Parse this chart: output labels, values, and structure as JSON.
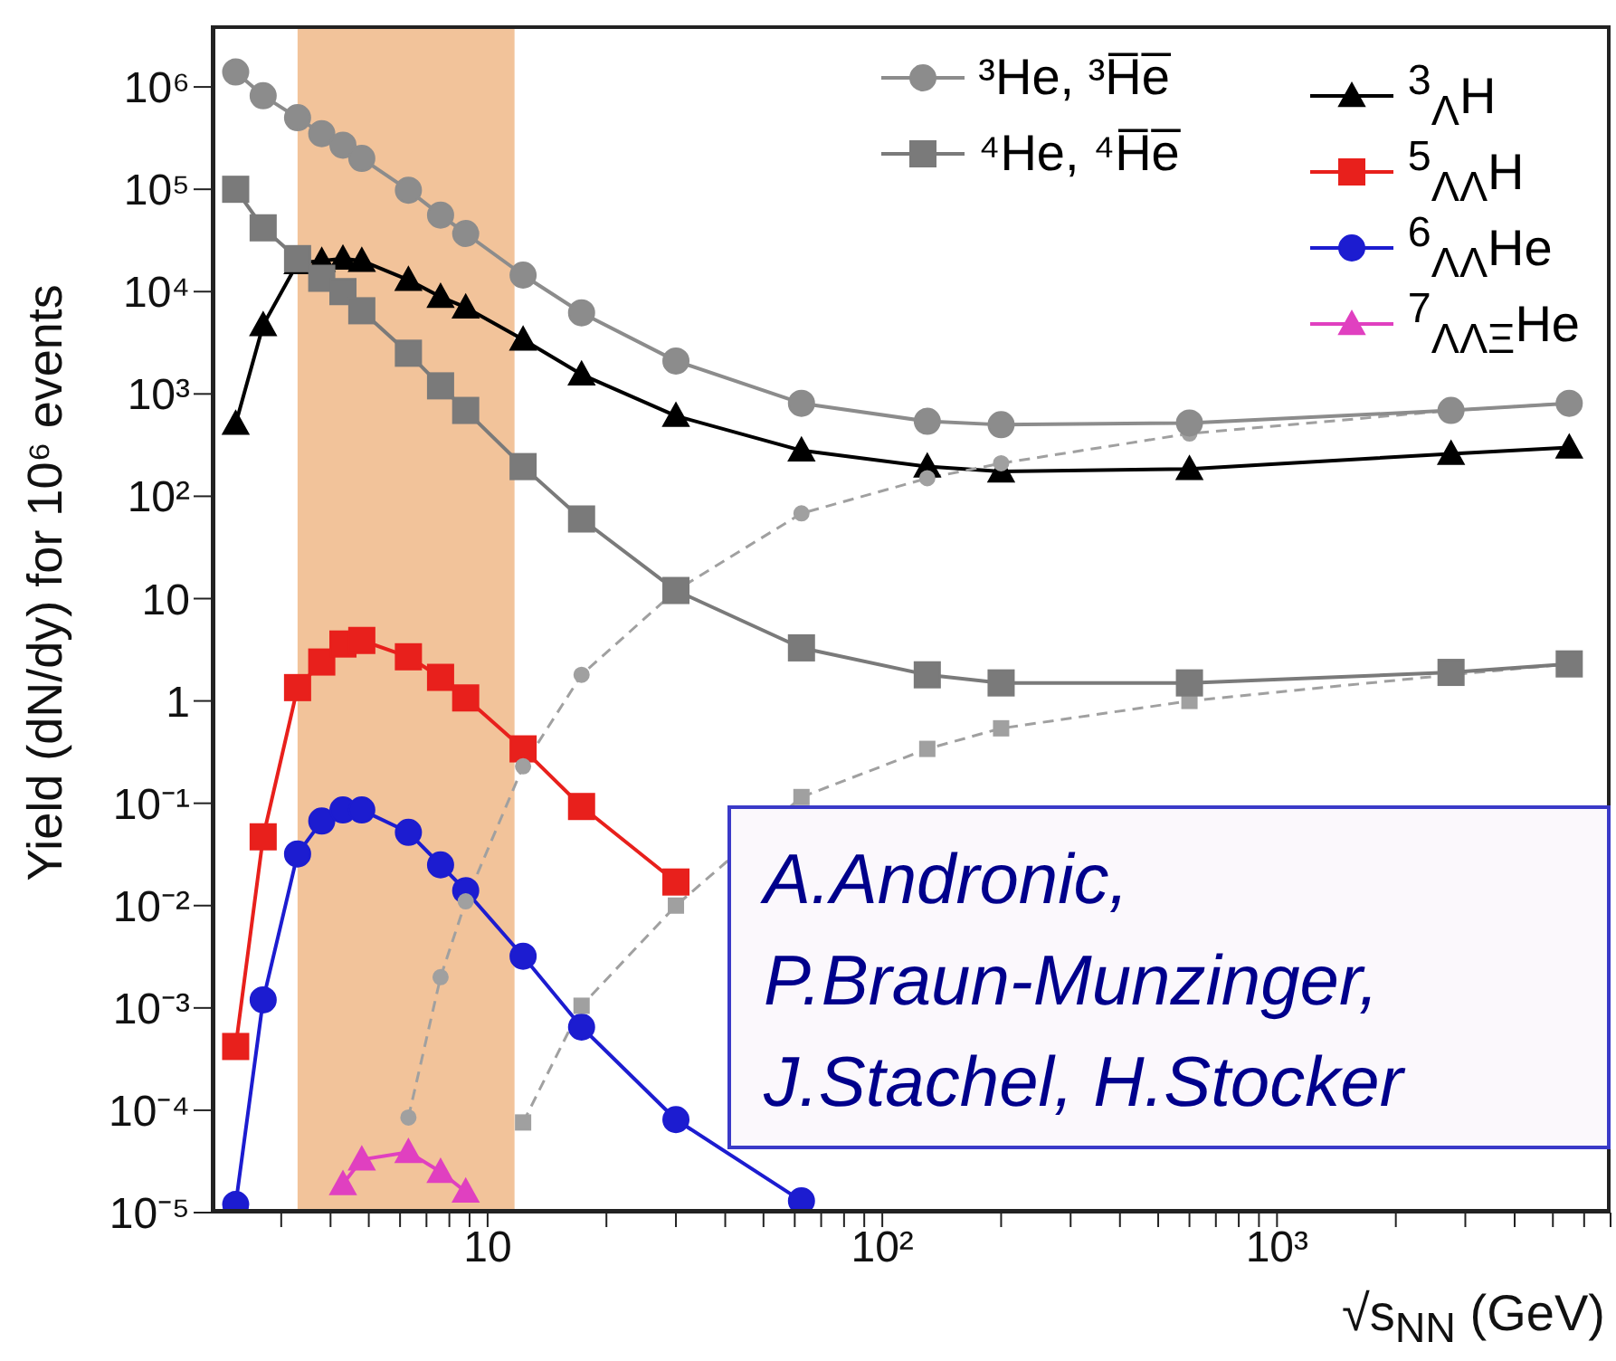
{
  "chart_data": {
    "type": "line",
    "xlabel": "√s$_{NN}$ (GeV)",
    "ylabel": "Yield (dN/dy) for 10⁶ events",
    "log": "xy",
    "grid": false,
    "legend": "top right",
    "x": [
      2.3,
      2.7,
      3.3,
      3.8,
      4.3,
      4.8,
      6.3,
      7.6,
      8.8,
      12.3,
      17.3,
      30,
      62.4,
      130,
      200,
      600,
      2760,
      5500
    ],
    "xlim": [
      2,
      7000
    ],
    "ylim": [
      1e-05,
      4000000
    ],
    "xticks": [
      {
        "value": 3,
        "label": null
      },
      {
        "value": 4,
        "label": null
      },
      {
        "value": 5,
        "label": null
      },
      {
        "value": 6,
        "label": null
      },
      {
        "value": 7,
        "label": null
      },
      {
        "value": 8,
        "label": null
      },
      {
        "value": 9,
        "label": null
      },
      10,
      {
        "value": 20,
        "label": null
      },
      {
        "value": 30,
        "label": null
      },
      {
        "value": 40,
        "label": null
      },
      {
        "value": 50,
        "label": null
      },
      {
        "value": 60,
        "label": null
      },
      {
        "value": 70,
        "label": null
      },
      {
        "value": 80,
        "label": null
      },
      {
        "value": 90,
        "label": null
      },
      {
        "value": 100,
        "label": "10²"
      },
      {
        "value": 200,
        "label": null
      },
      {
        "value": 300,
        "label": null
      },
      {
        "value": 400,
        "label": null
      },
      {
        "value": 500,
        "label": null
      },
      {
        "value": 600,
        "label": null
      },
      {
        "value": 700,
        "label": null
      },
      {
        "value": 800,
        "label": null
      },
      {
        "value": 900,
        "label": null
      },
      {
        "value": 1000,
        "label": "10³"
      },
      {
        "value": 2000,
        "label": null
      },
      {
        "value": 3000,
        "label": null
      },
      {
        "value": 4000,
        "label": null
      },
      {
        "value": 5000,
        "label": null
      },
      {
        "value": 6000,
        "label": null
      },
      {
        "value": 7000,
        "label": null
      }
    ],
    "yticks": [
      {
        "value": 1e-05,
        "label": "10⁻⁵"
      },
      {
        "value": 0.0001,
        "label": "10⁻⁴"
      },
      {
        "value": 0.001,
        "label": "10⁻³"
      },
      {
        "value": 0.01,
        "label": "10⁻²"
      },
      {
        "value": 0.1,
        "label": "10⁻¹"
      },
      1,
      10,
      {
        "value": 100,
        "label": "10²"
      },
      {
        "value": 1000,
        "label": "10³"
      },
      {
        "value": 10000,
        "label": "10⁴"
      },
      {
        "value": 100000,
        "label": "10⁵"
      },
      {
        "value": 1000000,
        "label": "10⁶"
      }
    ],
    "bands": [
      {
        "axis": "x",
        "from": 3.3,
        "to": 11.7,
        "color": "#f2c39a"
      }
    ],
    "series": [
      {
        "name": "³He, ³H̅e̅",
        "color": "#8c8c8c",
        "marker": "circle",
        "line_style": "solid",
        "values": [
          1400000,
          820000,
          500000,
          350000,
          270000,
          200000,
          98000,
          56000,
          37000,
          14500,
          6200,
          2100,
          810,
          540,
          500,
          520,
          690,
          810
        ]
      },
      {
        "name": "⁴He, ⁴H̅e̅",
        "color": "#7a7a7a",
        "marker": "square",
        "line_style": "solid",
        "values": [
          100000,
          42000,
          21000,
          13500,
          10000,
          6500,
          2500,
          1200,
          690,
          195,
          60,
          12,
          3.3,
          1.8,
          1.5,
          1.5,
          1.9,
          2.3
        ]
      },
      {
        "color": "#a0a0a0",
        "marker": "circle",
        "line_style": "dashed",
        "values": [
          null,
          null,
          null,
          null,
          null,
          null,
          8.5e-05,
          0.002,
          0.011,
          0.23,
          1.8,
          12,
          68,
          150,
          210,
          410,
          690,
          810
        ]
      },
      {
        "color": "#a0a0a0",
        "marker": "square",
        "line_style": "dashed",
        "values": [
          null,
          null,
          null,
          null,
          null,
          null,
          null,
          null,
          null,
          7.6e-05,
          0.00105,
          0.01,
          0.115,
          0.34,
          0.54,
          1.0,
          1.8,
          2.3
        ]
      },
      {
        "name": "$^{3}$$_{Λ}$H",
        "color": "#000000",
        "marker": "triangle",
        "line_style": "solid",
        "values": [
          510,
          4700,
          19000,
          20000,
          21000,
          20000,
          13000,
          8900,
          7000,
          3400,
          1550,
          610,
          280,
          195,
          175,
          185,
          260,
          300
        ]
      },
      {
        "name": "$^{5}$$_{ΛΛ}$H",
        "color": "#e8201c",
        "marker": "square",
        "line_style": "solid",
        "values": [
          0.00042,
          0.047,
          1.35,
          2.4,
          3.6,
          3.9,
          2.7,
          1.7,
          1.07,
          0.34,
          0.093,
          0.017,
          null,
          null,
          null,
          null,
          null,
          null
        ]
      },
      {
        "name": "$^{6}$$_{ΛΛ}$He",
        "color": "#1c1cd0",
        "marker": "circle",
        "line_style": "solid",
        "values": [
          1.2e-05,
          0.0012,
          0.032,
          0.067,
          0.086,
          0.086,
          0.052,
          0.025,
          0.014,
          0.0032,
          0.00065,
          8.1e-05,
          1.3e-05,
          null,
          null,
          null,
          null,
          null
        ]
      },
      {
        "name": "$^{7}$$_{ΛΛΞ}$He",
        "color": "#e040c0",
        "marker": "triangle",
        "line_style": "solid",
        "values": [
          null,
          null,
          null,
          null,
          1.9e-05,
          3.3e-05,
          3.9e-05,
          2.5e-05,
          1.6e-05,
          null,
          null,
          null,
          null,
          null,
          null,
          null,
          null,
          null
        ]
      }
    ],
    "annotations": [
      "A.Andronic,\nP.Braun-Munzinger,\nJ.Stachel, H.Stocker"
    ]
  }
}
